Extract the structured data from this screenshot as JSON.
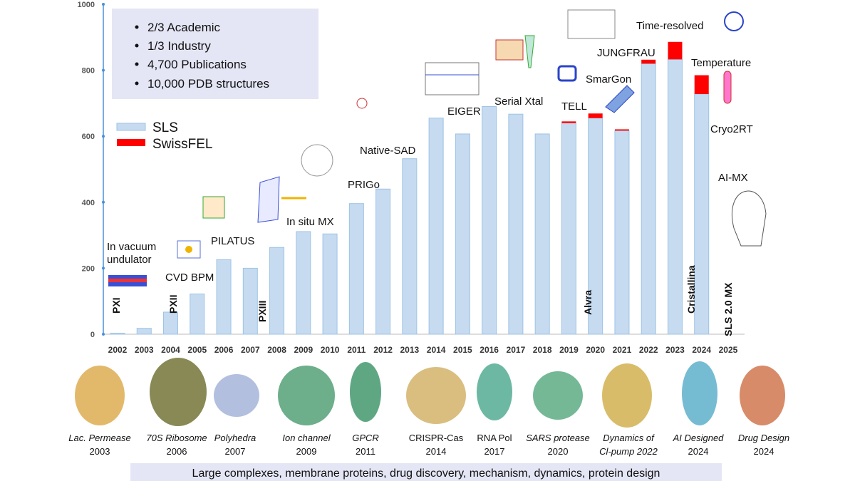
{
  "chart_data": {
    "type": "bar",
    "stacked": true,
    "categories": [
      "2002",
      "2003",
      "2004",
      "2005",
      "2006",
      "2007",
      "2008",
      "2009",
      "2010",
      "2011",
      "2012",
      "2013",
      "2014",
      "2015",
      "2016",
      "2017",
      "2018",
      "2019",
      "2020",
      "2021",
      "2022",
      "2023",
      "2024",
      "2025"
    ],
    "series": [
      {
        "name": "SLS",
        "color": "#c6dbf0",
        "values": [
          3,
          18,
          67,
          122,
          226,
          200,
          263,
          311,
          304,
          396,
          440,
          532,
          655,
          607,
          690,
          667,
          607,
          640,
          655,
          617,
          820,
          833,
          728,
          null
        ]
      },
      {
        "name": "SwissFEL",
        "color": "#ff0000",
        "values": [
          0,
          0,
          0,
          0,
          0,
          0,
          0,
          0,
          0,
          0,
          0,
          0,
          0,
          0,
          0,
          0,
          0,
          5,
          14,
          4,
          12,
          53,
          57,
          null
        ]
      }
    ],
    "ylim": [
      0,
      1000
    ],
    "yticks": [
      0,
      200,
      400,
      600,
      800,
      1000
    ],
    "grid": false,
    "info_box": [
      "2/3 Academic",
      "1/3 Industry",
      "4,700 Publications",
      "10,000 PDB structures"
    ],
    "annotations": [
      "In vacuum",
      "undulator",
      "CVD BPM",
      "PILATUS",
      "In situ MX",
      "PRIGo",
      "Native-SAD",
      "EIGER",
      "Serial Xtal",
      "TELL",
      "SmarGon",
      "JUNGFRAU",
      "Time-resolved",
      "Temperature",
      "Cryo2RT",
      "AI-MX"
    ],
    "vertical_labels": [
      "PXI",
      "PXII",
      "PXIII",
      "Alvra",
      "Cristallina",
      "SLS 2.0 MX"
    ]
  },
  "proteins": [
    {
      "lines": [
        "Lac. Permease",
        "2003"
      ]
    },
    {
      "lines": [
        "70S Ribosome",
        "2006"
      ]
    },
    {
      "lines": [
        "Polyhedra",
        "2007"
      ]
    },
    {
      "lines": [
        "Ion channel",
        "2009"
      ]
    },
    {
      "lines": [
        "GPCR",
        "2011"
      ]
    },
    {
      "lines": [
        "CRISPR-Cas",
        "2014"
      ]
    },
    {
      "lines": [
        "RNA Pol",
        "2017"
      ]
    },
    {
      "lines": [
        "SARS protease",
        "2020"
      ]
    },
    {
      "lines": [
        "Dynamics of",
        "Cl-pump 2022"
      ]
    },
    {
      "lines": [
        "AI Designed",
        "2024"
      ]
    },
    {
      "lines": [
        "Drug Design",
        "2024"
      ]
    }
  ],
  "footer": "Large complexes, membrane proteins, drug discovery, mechanism, dynamics, protein design"
}
